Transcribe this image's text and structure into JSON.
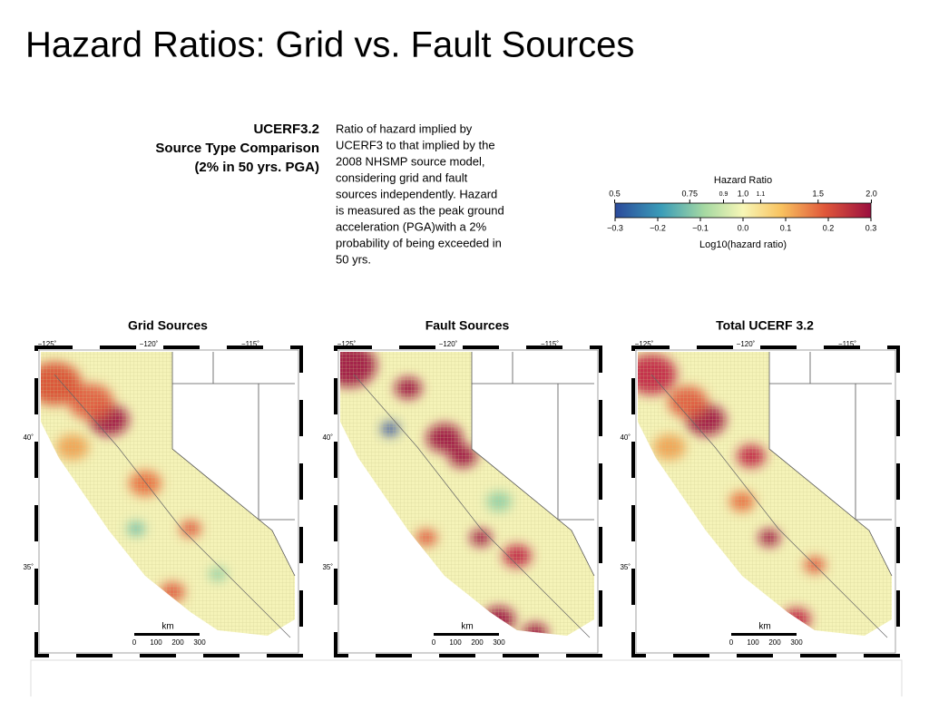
{
  "title": "Hazard Ratios: Grid vs. Fault Sources",
  "heading": [
    "UCERF3.2",
    "Source Type Comparison",
    "(2% in 50 yrs. PGA)"
  ],
  "description": [
    "Ratio of hazard implied by",
    "UCERF3 to that implied by the",
    "2008 NHSMP source model,",
    "considering grid and fault",
    "sources independently. Hazard",
    "is measured as the peak ground",
    "acceleration (PGA)with a 2%",
    "probability of being exceeded in",
    "50 yrs."
  ],
  "colorbar": {
    "title": "Hazard Ratio",
    "axis_label": "Log10(hazard ratio)",
    "ratio_ticks": [
      "0.5",
      "0.75",
      "0.9",
      "1.0",
      "1.1",
      "1.5",
      "2.0"
    ],
    "log_ticks": [
      "−0.3",
      "−0.2",
      "−0.1",
      "0.0",
      "0.1",
      "0.2",
      "0.3"
    ]
  },
  "maps": [
    {
      "title": "Grid Sources"
    },
    {
      "title": "Fault Sources"
    },
    {
      "title": "Total UCERF 3.2"
    }
  ],
  "longitudes": [
    "−125˚",
    "−120˚",
    "−115˚"
  ],
  "latitudes": [
    "40˚",
    "35˚"
  ],
  "scale": {
    "unit": "km",
    "ticks": [
      "0",
      "100",
      "200",
      "300"
    ]
  }
}
